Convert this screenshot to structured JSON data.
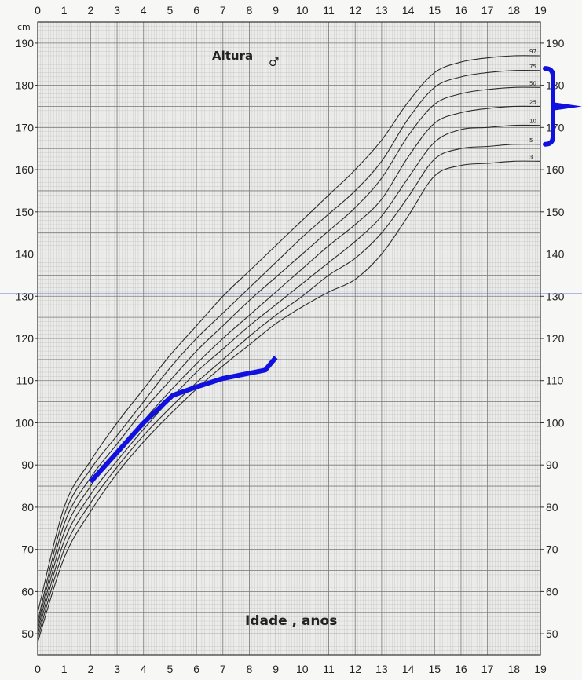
{
  "chart_data": {
    "type": "line",
    "title": "Altura",
    "title_symbol": "♂",
    "xlabel": "Idade , anos",
    "ylabel": "cm",
    "xlim": [
      0,
      19
    ],
    "ylim": [
      45,
      195
    ],
    "x_ticks": [
      0,
      1,
      2,
      3,
      4,
      5,
      6,
      7,
      8,
      9,
      10,
      11,
      12,
      13,
      14,
      15,
      16,
      17,
      18,
      19
    ],
    "y_ticks": [
      50,
      60,
      70,
      80,
      90,
      100,
      110,
      120,
      130,
      140,
      150,
      160,
      170,
      180,
      190
    ],
    "grid": true,
    "series": [
      {
        "name": "97",
        "x": [
          0,
          1,
          2,
          3,
          4,
          5,
          6,
          7,
          8,
          9,
          10,
          11,
          12,
          13,
          14,
          15,
          16,
          17,
          18,
          19
        ],
        "y": [
          55,
          80,
          91,
          100,
          108,
          116,
          123,
          130,
          136,
          142,
          148,
          154,
          160,
          167,
          176,
          183,
          185.5,
          186.5,
          187,
          187
        ]
      },
      {
        "name": "75",
        "x": [
          0,
          1,
          2,
          3,
          4,
          5,
          6,
          7,
          8,
          9,
          10,
          11,
          12,
          13,
          14,
          15,
          16,
          17,
          18,
          19
        ],
        "y": [
          53,
          78,
          89,
          97,
          105,
          113,
          120,
          126,
          132,
          138,
          144,
          149.5,
          155,
          162,
          172,
          179.5,
          182,
          183,
          183.5,
          183.5
        ]
      },
      {
        "name": "50",
        "x": [
          0,
          1,
          2,
          3,
          4,
          5,
          6,
          7,
          8,
          9,
          10,
          11,
          12,
          13,
          14,
          15,
          16,
          17,
          18,
          19
        ],
        "y": [
          52,
          76,
          87,
          95,
          103,
          110,
          117,
          123,
          129,
          134.5,
          140,
          145.5,
          151,
          158,
          168,
          175.5,
          178,
          179,
          179.5,
          179.5
        ]
      },
      {
        "name": "25",
        "x": [
          0,
          1,
          2,
          3,
          4,
          5,
          6,
          7,
          8,
          9,
          10,
          11,
          12,
          13,
          14,
          15,
          16,
          17,
          18,
          19
        ],
        "y": [
          51,
          74,
          85,
          93,
          100.5,
          107.5,
          114,
          120,
          125.5,
          131,
          136.5,
          142,
          147,
          153,
          163,
          171,
          173.5,
          174.5,
          175,
          175
        ]
      },
      {
        "name": "10",
        "x": [
          0,
          1,
          2,
          3,
          4,
          5,
          6,
          7,
          8,
          9,
          10,
          11,
          12,
          13,
          14,
          15,
          16,
          17,
          18,
          19
        ],
        "y": [
          50,
          72,
          83,
          91,
          98.5,
          105.5,
          112,
          117.5,
          123,
          128,
          133,
          138,
          143,
          149,
          158,
          166.5,
          169.5,
          170,
          170.5,
          170.5
        ]
      },
      {
        "name": "5",
        "x": [
          0,
          1,
          2,
          3,
          4,
          5,
          6,
          7,
          8,
          9,
          10,
          11,
          12,
          13,
          14,
          15,
          16,
          17,
          18,
          19
        ],
        "y": [
          49,
          70,
          81,
          89.5,
          97,
          103.5,
          109.5,
          115,
          120.5,
          125.5,
          130,
          135,
          139,
          145,
          153.5,
          162.5,
          165,
          165.5,
          166,
          166
        ]
      },
      {
        "name": "3",
        "x": [
          0,
          1,
          2,
          3,
          4,
          5,
          6,
          7,
          8,
          9,
          10,
          11,
          12,
          13,
          14,
          15,
          16,
          17,
          18,
          19
        ],
        "y": [
          48,
          68,
          79,
          88,
          95.5,
          102,
          108,
          113.5,
          118.5,
          123.5,
          127.5,
          131,
          134,
          140,
          149,
          158.5,
          161,
          161.5,
          162,
          162
        ]
      }
    ],
    "patient": {
      "color": "#1010e0",
      "x": [
        2,
        3,
        4,
        5.1,
        6,
        7,
        8.6,
        9
      ],
      "y": [
        86,
        93,
        100,
        106.5,
        108.5,
        110.5,
        112.5,
        115.5
      ]
    },
    "target_range": {
      "color": "#1010e0",
      "low": 166,
      "high": 184
    }
  }
}
